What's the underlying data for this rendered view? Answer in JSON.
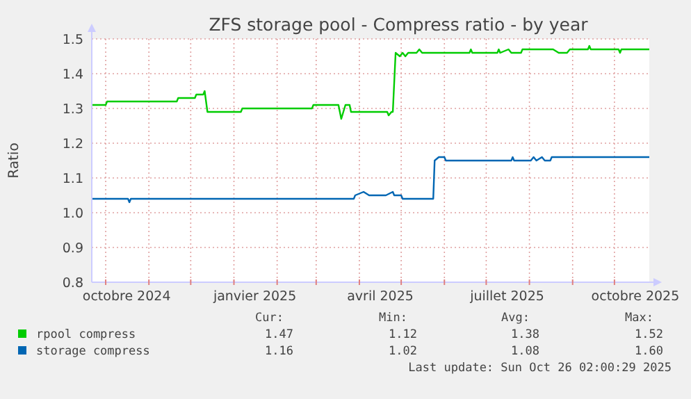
{
  "chart_data": {
    "type": "line",
    "title": "ZFS storage pool - Compress ratio - by year",
    "ylabel": "Ratio",
    "xlim": [
      "2024-09-21",
      "2025-10-26"
    ],
    "xticks": [
      {
        "value": "2024-10-01",
        "label": null
      },
      {
        "value": "2024-10-16",
        "label": "octobre 2024"
      },
      {
        "value": "2024-11-01",
        "label": null
      },
      {
        "value": "2024-12-01",
        "label": null
      },
      {
        "value": "2025-01-01",
        "label": null
      },
      {
        "value": "2025-01-16",
        "label": "janvier 2025"
      },
      {
        "value": "2025-02-01",
        "label": null
      },
      {
        "value": "2025-03-01",
        "label": null
      },
      {
        "value": "2025-04-01",
        "label": null
      },
      {
        "value": "2025-04-16",
        "label": "avril 2025"
      },
      {
        "value": "2025-05-01",
        "label": null
      },
      {
        "value": "2025-06-01",
        "label": null
      },
      {
        "value": "2025-07-01",
        "label": null
      },
      {
        "value": "2025-07-16",
        "label": "juillet 2025"
      },
      {
        "value": "2025-08-01",
        "label": null
      },
      {
        "value": "2025-09-01",
        "label": null
      },
      {
        "value": "2025-10-01",
        "label": null
      },
      {
        "value": "2025-10-16",
        "label": "octobre 2025"
      }
    ],
    "ylim": [
      0.8,
      1.5
    ],
    "yticks": [
      0.8,
      0.9,
      {
        "value": 1.0,
        "label": "1.0"
      },
      1.1,
      1.2,
      1.3,
      1.4,
      1.5
    ],
    "grid": true,
    "legend": "bottom",
    "series": [
      {
        "name": "rpool compress",
        "color": "#00cc00",
        "x": [
          "2024-09-21",
          "2024-10-01",
          "2024-10-02",
          "2024-11-21",
          "2024-11-22",
          "2024-12-04",
          "2024-12-05",
          "2024-12-10",
          "2024-12-11",
          "2024-12-13",
          "2025-01-06",
          "2025-01-07",
          "2025-02-26",
          "2025-02-27",
          "2025-03-17",
          "2025-03-19",
          "2025-03-22",
          "2025-03-25",
          "2025-03-26",
          "2025-04-21",
          "2025-04-22",
          "2025-04-24",
          "2025-04-25",
          "2025-04-27",
          "2025-04-30",
          "2025-05-02",
          "2025-05-04",
          "2025-05-06",
          "2025-05-12",
          "2025-05-14",
          "2025-05-16",
          "2025-06-19",
          "2025-06-20",
          "2025-06-21",
          "2025-07-09",
          "2025-07-10",
          "2025-07-11",
          "2025-07-17",
          "2025-07-19",
          "2025-07-26",
          "2025-07-27",
          "2025-07-28",
          "2025-08-18",
          "2025-08-22",
          "2025-08-28",
          "2025-08-30",
          "2025-09-01",
          "2025-09-12",
          "2025-09-13",
          "2025-09-14",
          "2025-10-04",
          "2025-10-05",
          "2025-10-06",
          "2025-10-26"
        ],
        "values": [
          1.31,
          1.31,
          1.32,
          1.32,
          1.33,
          1.33,
          1.34,
          1.34,
          1.35,
          1.29,
          1.29,
          1.3,
          1.3,
          1.31,
          1.31,
          1.27,
          1.31,
          1.31,
          1.29,
          1.29,
          1.28,
          1.29,
          1.29,
          1.46,
          1.45,
          1.46,
          1.45,
          1.46,
          1.46,
          1.47,
          1.46,
          1.46,
          1.47,
          1.46,
          1.46,
          1.47,
          1.46,
          1.47,
          1.46,
          1.46,
          1.47,
          1.47,
          1.47,
          1.46,
          1.46,
          1.47,
          1.47,
          1.47,
          1.48,
          1.47,
          1.47,
          1.46,
          1.47,
          1.47
        ]
      },
      {
        "name": "storage compress",
        "color": "#0066b3",
        "x": [
          "2024-09-21",
          "2024-10-17",
          "2024-10-18",
          "2024-10-19",
          "2025-03-28",
          "2025-03-29",
          "2025-04-04",
          "2025-04-08",
          "2025-04-20",
          "2025-04-25",
          "2025-04-26",
          "2025-05-01",
          "2025-05-02",
          "2025-05-24",
          "2025-05-25",
          "2025-05-28",
          "2025-06-01",
          "2025-06-02",
          "2025-07-19",
          "2025-07-20",
          "2025-07-21",
          "2025-08-02",
          "2025-08-04",
          "2025-08-06",
          "2025-08-10",
          "2025-08-12",
          "2025-08-16",
          "2025-08-17",
          "2025-10-26"
        ],
        "values": [
          1.04,
          1.04,
          1.03,
          1.04,
          1.04,
          1.05,
          1.06,
          1.05,
          1.05,
          1.06,
          1.05,
          1.05,
          1.04,
          1.04,
          1.15,
          1.16,
          1.16,
          1.15,
          1.15,
          1.16,
          1.15,
          1.15,
          1.16,
          1.15,
          1.16,
          1.15,
          1.15,
          1.16,
          1.16
        ]
      }
    ],
    "annotations": [
      "Cur:",
      "Min:",
      "Avg:",
      "Max:",
      "1.47",
      "1.12",
      "1.38",
      "1.52",
      "1.16",
      "1.02",
      "1.08",
      "1.60",
      "Last update: Sun Oct 26 02:00:29 2025"
    ]
  }
}
